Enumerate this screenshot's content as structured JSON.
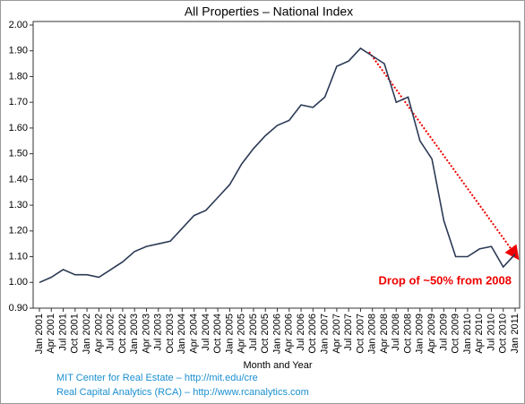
{
  "chart_data": {
    "type": "line",
    "title": "All Properties – National Index",
    "x_label": "Month and Year",
    "categories": [
      "Jan 2001",
      "Apr 2001",
      "Jul 2001",
      "Oct 2001",
      "Jan 2002",
      "Apr 2002",
      "Jul 2002",
      "Oct 2002",
      "Jan 2003",
      "Apr 2003",
      "Jul 2003",
      "Oct 2003",
      "Jan 2004",
      "Apr 2004",
      "Jul 2004",
      "Oct 2004",
      "Jan 2005",
      "Apr 2005",
      "Jul 2005",
      "Oct 2005",
      "Jan 2006",
      "Apr 2006",
      "Jul 2006",
      "Oct 2006",
      "Jan 2007",
      "Apr 2007",
      "Jul 2007",
      "Oct 2007",
      "Jan 2008",
      "Apr 2008",
      "Jul 2008",
      "Oct 2008",
      "Jan 2009",
      "Apr 2009",
      "Jul 2009",
      "Oct 2009",
      "Jan 2010",
      "Apr 2010",
      "Jul 2010",
      "Oct 2010",
      "Jan 2011"
    ],
    "values": [
      1.0,
      1.02,
      1.05,
      1.03,
      1.03,
      1.02,
      1.05,
      1.08,
      1.12,
      1.14,
      1.15,
      1.16,
      1.21,
      1.26,
      1.28,
      1.33,
      1.38,
      1.46,
      1.52,
      1.57,
      1.61,
      1.63,
      1.69,
      1.68,
      1.72,
      1.84,
      1.86,
      1.91,
      1.88,
      1.85,
      1.7,
      1.72,
      1.55,
      1.48,
      1.24,
      1.1,
      1.1,
      1.13,
      1.14,
      1.06,
      1.11
    ],
    "color": "#2b3a55",
    "ylim": [
      0.9,
      2.0
    ],
    "yticks": [
      {
        "value": 0.9,
        "label": "0.90"
      },
      {
        "value": 1.0,
        "label": "1.00"
      },
      {
        "value": 1.1,
        "label": "1.10"
      },
      {
        "value": 1.2,
        "label": "1.20"
      },
      {
        "value": 1.3,
        "label": "1.30"
      },
      {
        "value": 1.4,
        "label": "1.40"
      },
      {
        "value": 1.5,
        "label": "1.50"
      },
      {
        "value": 1.6,
        "label": "1.60"
      },
      {
        "value": 1.7,
        "label": "1.70"
      },
      {
        "value": 1.8,
        "label": "1.80"
      },
      {
        "value": 1.9,
        "label": "1.90"
      },
      {
        "value": 2.0,
        "label": "2.00"
      }
    ],
    "annotation": "Drop of ~50% from 2008",
    "sources": [
      "MIT Center for Real Estate – http://mit.edu/cre",
      "Real Capital Analytics (RCA) – http://www.rcanalytics.com"
    ]
  }
}
